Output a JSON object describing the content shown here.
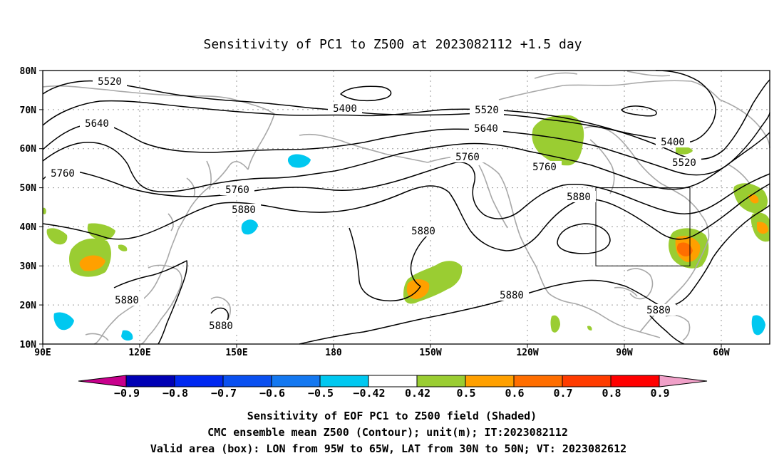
{
  "title": "Sensitivity of PC1 to Z500 at 2023082112 +1.5 day",
  "lon_labels": [
    "90E",
    "120E",
    "150E",
    "180",
    "150W",
    "120W",
    "90W",
    "60W"
  ],
  "lat_labels": [
    "80N",
    "70N",
    "60N",
    "50N",
    "40N",
    "30N",
    "20N",
    "10N"
  ],
  "contour_labels": [
    "5400",
    "5400",
    "5520",
    "5520",
    "5520",
    "5640",
    "5640",
    "5760",
    "5760",
    "5760",
    "5760",
    "5880",
    "5880",
    "5880",
    "5880",
    "5880",
    "5880",
    "5880"
  ],
  "colorbar": {
    "labels": [
      "−0.9",
      "−0.8",
      "−0.7",
      "−0.6",
      "−0.5",
      "−0.42",
      "0.42",
      "0.5",
      "0.6",
      "0.7",
      "0.8",
      "0.9"
    ],
    "colors": [
      "#c8008c",
      "#0000b4",
      "#0028f0",
      "#0a50f0",
      "#1478f0",
      "#00c8f0",
      "#ffffff",
      "#9acd32",
      "#ffa000",
      "#ff6e00",
      "#ff3c00",
      "#ff0000",
      "#f0a0c8"
    ]
  },
  "shading_colors": {
    "green": "#9acd32",
    "orange": "#ffa000",
    "deep_orange": "#ff6e00",
    "cyan": "#00c8f0"
  },
  "valid_box": {
    "lon_west": "95W",
    "lon_east": "65W",
    "lat_south": "30N",
    "lat_north": "50N"
  },
  "captions": [
    "Sensitivity of EOF PC1 to Z500 field (Shaded)",
    "CMC ensemble mean Z500 (Contour); unit(m); IT:2023082112",
    "Valid area (box): LON from 95W to 65W, LAT from 30N to 50N; VT: 2023082612"
  ]
}
